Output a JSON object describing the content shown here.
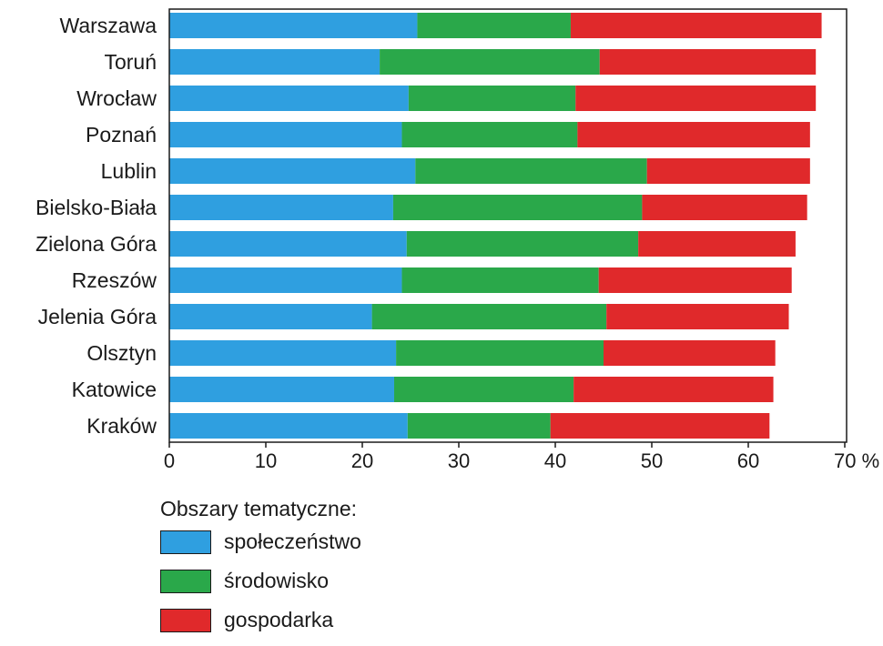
{
  "chart_data": {
    "type": "bar",
    "orientation": "horizontal",
    "stacked": true,
    "categories": [
      "Warszawa",
      "Toruń",
      "Wrocław",
      "Poznań",
      "Lublin",
      "Bielsko-Biała",
      "Zielona Góra",
      "Rzeszów",
      "Jelenia Góra",
      "Olsztyn",
      "Katowice",
      "Kraków"
    ],
    "series": [
      {
        "name": "społeczeństwo",
        "color": "#2f9fe0",
        "values": [
          25.7,
          21.8,
          24.8,
          24.1,
          25.5,
          23.2,
          24.6,
          24.1,
          21.0,
          23.5,
          23.3,
          24.7
        ]
      },
      {
        "name": "środowisko",
        "color": "#2aa84a",
        "values": [
          15.9,
          22.8,
          17.3,
          18.2,
          24.0,
          25.8,
          24.0,
          20.4,
          24.3,
          21.5,
          18.6,
          14.8
        ]
      },
      {
        "name": "gospodarka",
        "color": "#e0292b",
        "values": [
          26.0,
          22.4,
          24.9,
          24.1,
          16.9,
          17.1,
          16.3,
          20.0,
          18.9,
          17.8,
          20.7,
          22.7
        ]
      }
    ],
    "xticks": [
      "0",
      "10",
      "20",
      "30",
      "40",
      "50",
      "60",
      "70 %"
    ],
    "xlim": [
      0,
      70
    ],
    "title": "",
    "xlabel": "",
    "ylabel": "",
    "grid": false,
    "legend_title": "Obszary tematyczne:",
    "legend_position": "bottom-left"
  }
}
